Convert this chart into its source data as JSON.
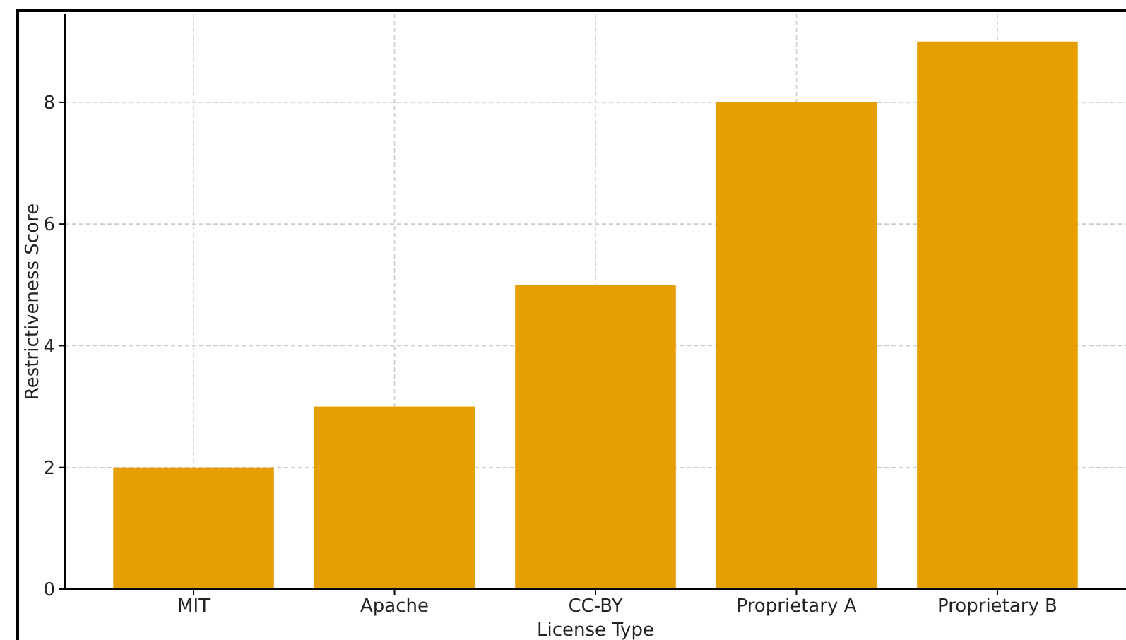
{
  "chart_data": {
    "type": "bar",
    "xlabel": "License Type",
    "ylabel": "Restrictiveness Score",
    "categories": [
      "MIT",
      "Apache",
      "CC-BY",
      "Proprietary A",
      "Proprietary B"
    ],
    "values": [
      2,
      3,
      5,
      8,
      9
    ],
    "color": "#e69f00",
    "ylim": [
      0,
      9.45
    ],
    "yticks": [
      0,
      2,
      4,
      6,
      8
    ],
    "grid": true
  }
}
